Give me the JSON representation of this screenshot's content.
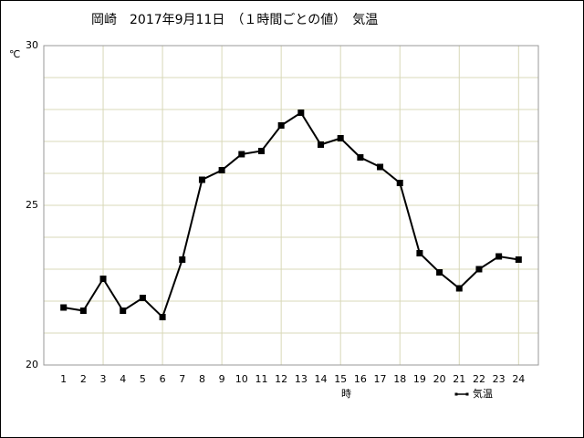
{
  "chart_data": {
    "type": "line",
    "title": "岡崎　2017年9月11日　（１時間ごとの値）　気温",
    "ylabel": "℃",
    "xlabel": "時",
    "x": [
      1,
      2,
      3,
      4,
      5,
      6,
      7,
      8,
      9,
      10,
      11,
      12,
      13,
      14,
      15,
      16,
      17,
      18,
      19,
      20,
      21,
      22,
      23,
      24
    ],
    "series": [
      {
        "name": "気温",
        "color": "#000000",
        "values": [
          21.8,
          21.7,
          22.7,
          21.7,
          22.1,
          21.5,
          23.3,
          25.8,
          26.1,
          26.6,
          26.7,
          27.5,
          27.9,
          26.9,
          27.1,
          26.5,
          26.2,
          25.7,
          23.5,
          22.9,
          22.4,
          23.0,
          23.4,
          23.3
        ]
      }
    ],
    "xlim": [
      0,
      25
    ],
    "xticks": [
      1,
      2,
      3,
      4,
      5,
      6,
      7,
      8,
      9,
      10,
      11,
      12,
      13,
      14,
      15,
      16,
      17,
      18,
      19,
      20,
      21,
      22,
      23,
      24
    ],
    "xgrid": [
      3,
      6,
      9,
      12,
      15,
      18,
      21,
      24
    ],
    "ylim": [
      20,
      30
    ],
    "yticks": [
      20,
      25,
      30
    ],
    "yminor": [
      21,
      22,
      23,
      24,
      26,
      27,
      28,
      29
    ],
    "grid": true,
    "legend": "bottom-right"
  }
}
